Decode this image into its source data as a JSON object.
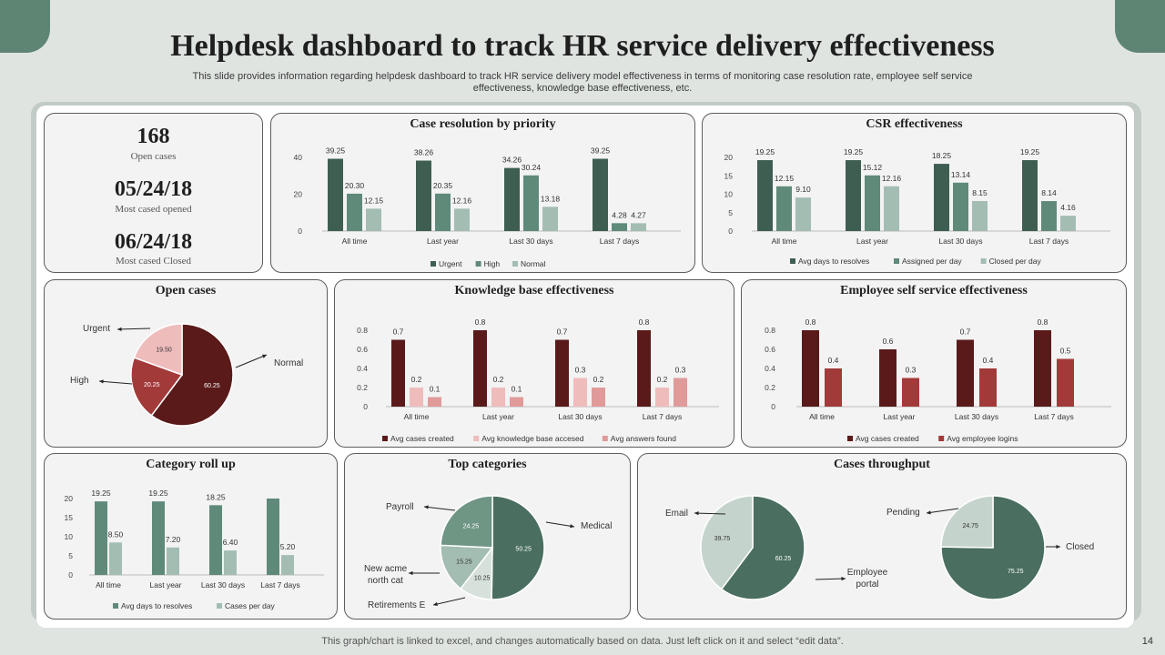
{
  "header": {
    "title": "Helpdesk dashboard to track HR service delivery effectiveness",
    "subtitle_line1": "This slide provides information regarding helpdesk dashboard to track HR service delivery model effectiveness in terms of monitoring case resolution rate, employee self service",
    "subtitle_line2": "effectiveness, knowledge base effectiveness, etc."
  },
  "stats": {
    "open_cases_value": "168",
    "open_cases_label": "Open cases",
    "most_opened_value": "05/24/18",
    "most_opened_label": "Most cased opened",
    "most_closed_value": "06/24/18",
    "most_closed_label": "Most cased Closed"
  },
  "footer": {
    "note": "This graph/chart is linked to excel, and changes automatically based on data. Just left click on it and select “edit data”.",
    "page_number": "14"
  },
  "chart_data": [
    {
      "id": "case_resolution",
      "type": "bar",
      "title": "Case resolution by priority",
      "categories": [
        "All time",
        "Last year",
        "Last 30 days",
        "Last 7 days"
      ],
      "yticks": [
        "0",
        "20",
        "40"
      ],
      "ylim": [
        0,
        40
      ],
      "series": [
        {
          "name": "Urgent",
          "color": "#3f5e52",
          "values": [
            39.25,
            38.26,
            34.26,
            39.25
          ],
          "labels": [
            "39.25",
            "38.26",
            "34.26",
            "39.25"
          ]
        },
        {
          "name": "High",
          "color": "#5f8a7a",
          "values": [
            20.3,
            20.35,
            30.24,
            4.28
          ],
          "labels": [
            "20.30",
            "20.35",
            "30.24",
            "4.28"
          ]
        },
        {
          "name": "Normal",
          "color": "#a3bdb3",
          "values": [
            12.15,
            12.16,
            13.18,
            4.27
          ],
          "labels": [
            "12.15",
            "12.16",
            "13.18",
            "4.27"
          ]
        }
      ]
    },
    {
      "id": "csr",
      "type": "bar",
      "title": "CSR effectiveness",
      "categories": [
        "All time",
        "Last year",
        "Last 30 days",
        "Last 7 days"
      ],
      "yticks": [
        "0",
        "5",
        "10",
        "15",
        "20"
      ],
      "ylim": [
        0,
        20
      ],
      "series": [
        {
          "name": "Avg days to resolves",
          "color": "#3f5e52",
          "values": [
            19.25,
            19.25,
            18.25,
            19.25
          ],
          "labels": [
            "19.25",
            "19.25",
            "18.25",
            "19.25"
          ]
        },
        {
          "name": "Assigned per day",
          "color": "#5f8a7a",
          "values": [
            12.15,
            15.12,
            13.14,
            8.14
          ],
          "labels": [
            "12.15",
            "15.12",
            "13.14",
            "8.14"
          ]
        },
        {
          "name": "Closed per day",
          "color": "#a3bdb3",
          "values": [
            9.1,
            12.16,
            8.15,
            4.16
          ],
          "labels": [
            "9.10",
            "12.16",
            "8.15",
            "4.16"
          ]
        }
      ]
    },
    {
      "id": "open_cases",
      "type": "pie",
      "title": "Open cases",
      "slices": [
        {
          "name": "Normal",
          "value": 60.25,
          "label": "60.25",
          "color": "#5a1a1a"
        },
        {
          "name": "High",
          "value": 20.25,
          "label": "20.25",
          "color": "#a33a3a"
        },
        {
          "name": "Urgent",
          "value": 19.5,
          "label": "19.50",
          "color": "#efbcbc"
        }
      ]
    },
    {
      "id": "knowledge_base",
      "type": "bar",
      "title": "Knowledge base effectiveness",
      "categories": [
        "All time",
        "Last year",
        "Last 30 days",
        "Last 7 days"
      ],
      "yticks": [
        "0",
        "0.2",
        "0.4",
        "0.6",
        "0.8"
      ],
      "ylim": [
        0,
        0.8
      ],
      "series": [
        {
          "name": "Avg cases created",
          "color": "#5a1a1a",
          "values": [
            0.7,
            0.8,
            0.7,
            0.8
          ],
          "labels": [
            "0.7",
            "0.8",
            "0.7",
            "0.8"
          ]
        },
        {
          "name": "Avg knowledge base accesed",
          "color": "#efbcbc",
          "values": [
            0.2,
            0.2,
            0.3,
            0.2
          ],
          "labels": [
            "0.2",
            "0.2",
            "0.3",
            "0.2"
          ]
        },
        {
          "name": "Avg answers found",
          "color": "#e09a9a",
          "values": [
            0.1,
            0.1,
            0.2,
            0.3
          ],
          "labels": [
            "0.1",
            "0.1",
            "0.2",
            "0.3"
          ]
        }
      ]
    },
    {
      "id": "employee_self_service",
      "type": "bar",
      "title": "Employee self service effectiveness",
      "categories": [
        "All time",
        "Last year",
        "Last 30 days",
        "Last 7 days"
      ],
      "yticks": [
        "0",
        "0.2",
        "0.4",
        "0.6",
        "0.8"
      ],
      "ylim": [
        0,
        0.8
      ],
      "series": [
        {
          "name": "Avg cases created",
          "color": "#5a1a1a",
          "values": [
            0.8,
            0.6,
            0.7,
            0.8
          ],
          "labels": [
            "0.8",
            "0.6",
            "0.7",
            "0.8"
          ]
        },
        {
          "name": "Avg employee logins",
          "color": "#a33a3a",
          "values": [
            0.4,
            0.3,
            0.4,
            0.5
          ],
          "labels": [
            "0.4",
            "0.3",
            "0.4",
            "0.5"
          ]
        }
      ]
    },
    {
      "id": "category_rollup",
      "type": "bar",
      "title": "Category roll up",
      "categories": [
        "All time",
        "Last year",
        "Last 30 days",
        "Last 7 days"
      ],
      "yticks": [
        "0",
        "5",
        "10",
        "15",
        "20"
      ],
      "ylim": [
        0,
        20
      ],
      "series": [
        {
          "name": "Avg days to resolves",
          "color": "#5f8a7a",
          "values": [
            19.25,
            19.25,
            18.25,
            20
          ],
          "labels": [
            "19.25",
            "19.25",
            "18.25",
            ""
          ]
        },
        {
          "name": "Cases per day",
          "color": "#a3bdb3",
          "values": [
            8.5,
            7.2,
            6.4,
            5.2
          ],
          "labels": [
            "8.50",
            "7.20",
            "6.40",
            "5.20"
          ]
        }
      ]
    },
    {
      "id": "top_categories",
      "type": "pie",
      "title": "Top categories",
      "slices": [
        {
          "name": "Medical",
          "value": 50.25,
          "label": "50.25",
          "color": "#4a6e60"
        },
        {
          "name": "Retirements E",
          "value": 10.25,
          "label": "10.25",
          "color": "#d7e1dc"
        },
        {
          "name": "New acme north cat",
          "value": 15.25,
          "label": "15.25",
          "color": "#a3bdb3"
        },
        {
          "name": "Payroll",
          "value": 24.25,
          "label": "24.25",
          "color": "#6f9585"
        }
      ],
      "callouts": {
        "medical": "Medical",
        "retirements": "Retirements E",
        "newacme1": "New acme",
        "newacme2": "north cat",
        "payroll": "Payroll"
      }
    },
    {
      "id": "throughput_email",
      "type": "pie",
      "title": "Cases throughput",
      "slices": [
        {
          "name": "Employee portal",
          "value": 60.25,
          "label": "60.25",
          "color": "#4a6e60"
        },
        {
          "name": "Email",
          "value": 39.75,
          "label": "39.75",
          "color": "#c4d3cc"
        }
      ],
      "callouts": {
        "email": "Email",
        "portal1": "Employee",
        "portal2": "portal"
      }
    },
    {
      "id": "throughput_status",
      "type": "pie",
      "title": "",
      "slices": [
        {
          "name": "Closed",
          "value": 75.25,
          "label": "75.25",
          "color": "#4a6e60"
        },
        {
          "name": "Pending",
          "value": 24.75,
          "label": "24.75",
          "color": "#c4d3cc"
        }
      ],
      "callouts": {
        "pending": "Pending",
        "closed": "Closed"
      }
    }
  ]
}
